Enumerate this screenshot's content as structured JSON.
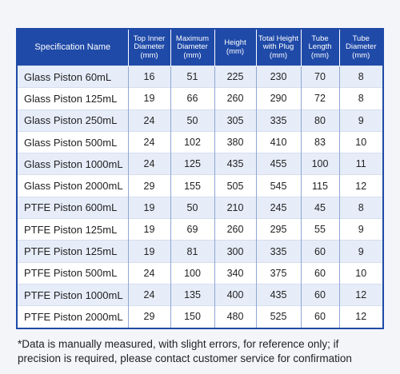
{
  "table": {
    "header": [
      "Specification Name",
      "Top Inner\nDiameter\n(mm)",
      "Maximum\nDiameter\n(mm)",
      "Height\n(mm)",
      "Total Height\nwith Plug\n(mm)",
      "Tube\nLength\n(mm)",
      "Tube\nDiameter\n(mm)"
    ],
    "rows": [
      [
        "Glass Piston 60mL",
        16,
        51,
        225,
        230,
        70,
        8
      ],
      [
        "Glass Piston 125mL",
        19,
        66,
        260,
        290,
        72,
        8
      ],
      [
        "Glass Piston 250mL",
        24,
        50,
        305,
        335,
        80,
        9
      ],
      [
        "Glass Piston 500mL",
        24,
        102,
        380,
        410,
        83,
        10
      ],
      [
        "Glass Piston 1000mL",
        24,
        125,
        435,
        455,
        100,
        11
      ],
      [
        "Glass Piston 2000mL",
        29,
        155,
        505,
        545,
        115,
        12
      ],
      [
        "PTFE Piston 600mL",
        19,
        50,
        210,
        245,
        45,
        8
      ],
      [
        "PTFE Piston 125mL",
        19,
        69,
        260,
        295,
        55,
        9
      ],
      [
        "PTFE Piston 125mL",
        19,
        81,
        300,
        335,
        60,
        9
      ],
      [
        "PTFE Piston 500mL",
        24,
        100,
        340,
        375,
        60,
        10
      ],
      [
        "PTFE Piston 1000mL",
        24,
        135,
        400,
        435,
        60,
        12
      ],
      [
        "PTFE Piston 2000mL",
        29,
        150,
        480,
        525,
        60,
        12
      ]
    ]
  },
  "footnote": "*Data is manually measured, with slight errors, for reference only; if\nprecision is required, please contact customer service for confirmation"
}
